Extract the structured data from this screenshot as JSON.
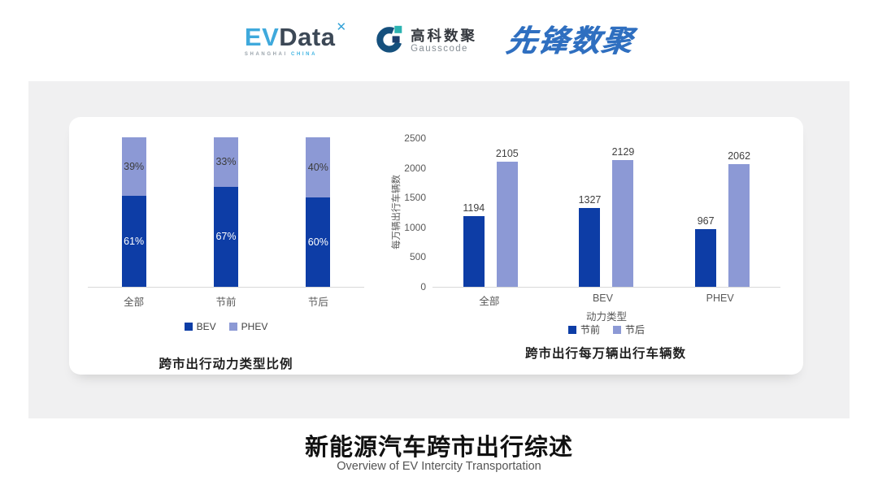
{
  "header": {
    "evdata": {
      "ev": "EV",
      "data": "Data",
      "x_mark": "✕",
      "sub_shanghai": "SHANGHAI",
      "sub_china": "CHINA"
    },
    "gausscode": {
      "cn": "高科数聚",
      "en": "Gausscode"
    },
    "xianfeng": {
      "text": "先锋数聚"
    }
  },
  "footer": {
    "title": "新能源汽车跨市出行综述",
    "subtitle": "Overview of EV Intercity Transportation"
  },
  "colors": {
    "dark_blue": "#0d3da6",
    "light_blue": "#8c99d5",
    "axis_line": "#d9d9d9",
    "tick_text": "#595959",
    "panel_gray": "#f0f0f1",
    "card_white": "#ffffff"
  },
  "chart_data": [
    {
      "type": "bar",
      "subtype": "stacked-percent",
      "title": "跨市出行动力类型比例",
      "categories": [
        "全部",
        "节前",
        "节后"
      ],
      "series": [
        {
          "name": "BEV",
          "values": [
            61,
            67,
            60
          ],
          "color": "#0d3da6",
          "label_color": "#ffffff"
        },
        {
          "name": "PHEV",
          "values": [
            39,
            33,
            40
          ],
          "color": "#8c99d5",
          "label_color": "#3c3c3c"
        }
      ],
      "value_suffix": "%",
      "ylim": [
        0,
        100
      ],
      "legend": [
        "BEV",
        "PHEV"
      ],
      "legend_position": "bottom",
      "grid": false
    },
    {
      "type": "bar",
      "subtype": "grouped",
      "title": "跨市出行每万辆出行车辆数",
      "categories": [
        "全部",
        "BEV",
        "PHEV"
      ],
      "series": [
        {
          "name": "节前",
          "values": [
            1194,
            1327,
            967
          ],
          "color": "#0d3da6"
        },
        {
          "name": "节后",
          "values": [
            2105,
            2129,
            2062
          ],
          "color": "#8c99d5"
        }
      ],
      "xlabel": "动力类型",
      "ylabel": "每万辆出行车辆数",
      "ylim": [
        0,
        2500
      ],
      "yticks": [
        0,
        500,
        1000,
        1500,
        2000,
        2500
      ],
      "legend": [
        "节前",
        "节后"
      ],
      "legend_position": "bottom",
      "grid": false
    }
  ]
}
